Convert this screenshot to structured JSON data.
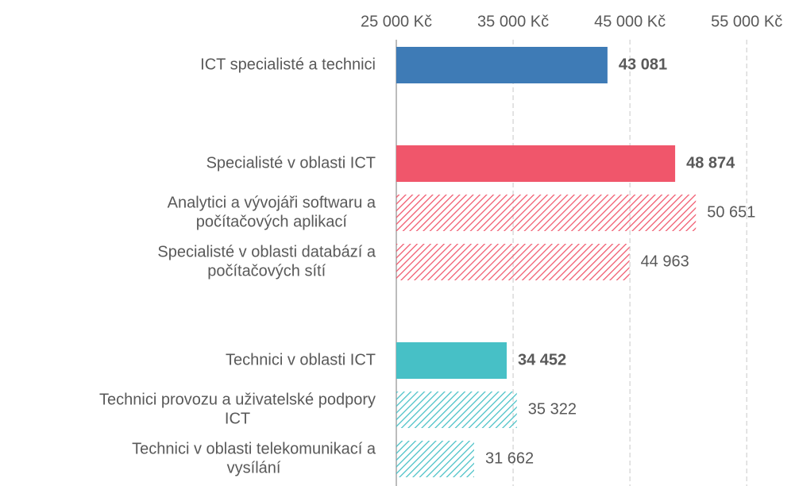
{
  "chart_data": {
    "type": "bar",
    "orientation": "horizontal",
    "categories": [
      [
        "ICT specialisté a technici"
      ],
      null,
      [
        "Specialisté v oblasti ICT"
      ],
      [
        "Analytici a vývojáři softwaru a",
        "počítačových aplikací"
      ],
      [
        "Specialisté v oblasti databází a",
        "počítačových sítí"
      ],
      null,
      [
        "Technici v oblasti ICT"
      ],
      [
        "Technici provozu a uživatelské podpory",
        "ICT"
      ],
      [
        "Technici v oblasti telekomunikací a",
        "vysílání"
      ]
    ],
    "values": [
      43081,
      null,
      48874,
      50651,
      44963,
      null,
      34452,
      35322,
      31662
    ],
    "value_labels": [
      "43 081",
      null,
      "48 874",
      "50 651",
      "44 963",
      null,
      "34 452",
      "35 322",
      "31 662"
    ],
    "colors": [
      "#3e7bb6",
      null,
      "#f0566b",
      "#f0566b",
      "#f0566b",
      null,
      "#47c0c6",
      "#47c0c6",
      "#47c0c6"
    ],
    "label_colors": [
      "#1f6fb5",
      null,
      "#c00000",
      "#c00000",
      "#c00000",
      null,
      "#2e8b9a",
      "#2e8b9a",
      "#2e8b9a"
    ],
    "hatched": [
      false,
      null,
      false,
      true,
      true,
      null,
      false,
      true,
      true
    ],
    "bold_labels": [
      true,
      null,
      true,
      false,
      false,
      null,
      true,
      false,
      false
    ],
    "xlim": [
      25000,
      59000
    ],
    "xticks": [
      {
        "value": 25000,
        "label": "25 000 Kč"
      },
      {
        "value": 35000,
        "label": "35 000 Kč"
      },
      {
        "value": 45000,
        "label": "45 000 Kč"
      },
      {
        "value": 55000,
        "label": "55 000 Kč"
      }
    ],
    "grid": true
  }
}
